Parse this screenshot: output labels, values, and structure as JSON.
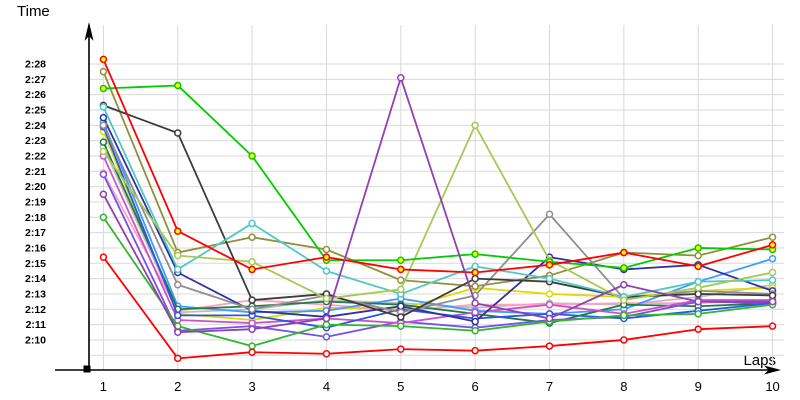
{
  "chart_data": {
    "type": "line",
    "title": "",
    "xlabel": "Laps",
    "ylabel": "Time",
    "x": [
      1,
      2,
      3,
      4,
      5,
      6,
      7,
      8,
      9,
      10
    ],
    "x_tick_labels": [
      "1",
      "2",
      "3",
      "4",
      "5",
      "6",
      "7",
      "8",
      "9",
      "10"
    ],
    "y_tick_labels": [
      "2:28",
      "2:27",
      "2:26",
      "2:25",
      "2:24",
      "2:23",
      "2:22",
      "2:21",
      "2:20",
      "2:19",
      "2:18",
      "2:17",
      "2:16",
      "2:15",
      "2:14",
      "2:13",
      "2:12",
      "2:11",
      "2:10"
    ],
    "y_axis_unit": "min:sec lap time",
    "ylim": [
      "2:09",
      "2:28"
    ],
    "xlim": [
      1,
      10
    ],
    "grid": true,
    "legend": "none",
    "axis_color": "#000000",
    "grid_color": "#D9D9D9",
    "marker_style": "open-circle",
    "series": [
      {
        "name": "silver",
        "color": "#BDBDBD",
        "marker_fill": "#FFFFFF",
        "lap_times_seconds": [
          142.6,
          131.8,
          132.0,
          132.6,
          132.4,
          132.1,
          132.4,
          132.3,
          132.8,
          133.6
        ]
      },
      {
        "name": "yellow",
        "color": "#DCDC00",
        "marker_fill": "#FFFFFF",
        "lap_times_seconds": [
          143.6,
          131.7,
          131.3,
          132.1,
          132.0,
          133.4,
          133.0,
          132.8,
          133.2,
          133.4
        ]
      },
      {
        "name": "pink",
        "color": "#FFA0C0",
        "marker_fill": "#FFFFFF",
        "lap_times_seconds": [
          140.9,
          131.9,
          132.6,
          132.3,
          131.9,
          132.3,
          132.3,
          132.4,
          132.4,
          132.6
        ]
      },
      {
        "name": "light-blue",
        "color": "#3E9BFF",
        "marker_fill": "#FFFFFF",
        "lap_times_seconds": [
          144.2,
          132.2,
          131.8,
          131.9,
          132.7,
          131.9,
          131.7,
          132.0,
          133.8,
          135.3
        ]
      },
      {
        "name": "dark-green",
        "color": "#237A46",
        "marker_fill": "#FFFFFF",
        "lap_times_seconds": [
          142.9,
          132.0,
          132.2,
          132.5,
          132.3,
          131.7,
          131.1,
          132.3,
          132.2,
          132.4
        ]
      },
      {
        "name": "blue-violet",
        "color": "#7A50E8",
        "marker_fill": "#FFFFFF",
        "lap_times_seconds": [
          140.8,
          130.6,
          130.9,
          130.2,
          131.2,
          130.8,
          131.3,
          131.5,
          132.5,
          132.4
        ]
      },
      {
        "name": "magenta",
        "color": "#C855C8",
        "marker_fill": "#FFFFFF",
        "lap_times_seconds": [
          142.0,
          131.3,
          131.1,
          131.4,
          131.1,
          131.8,
          132.3,
          131.7,
          132.6,
          132.6
        ]
      },
      {
        "name": "blue",
        "color": "#2F55E6",
        "marker_fill": "#FFFFFF",
        "lap_times_seconds": [
          143.9,
          131.6,
          131.6,
          130.8,
          132.0,
          131.4,
          131.7,
          131.4,
          131.9,
          132.4
        ]
      },
      {
        "name": "navy",
        "color": "#3030A8",
        "marker_fill": "#FFFFFF",
        "lap_times_seconds": [
          144.5,
          134.4,
          131.9,
          131.5,
          132.2,
          131.2,
          135.4,
          134.6,
          134.9,
          133.2
        ]
      },
      {
        "name": "olive",
        "color": "#8F8F3C",
        "marker_fill": "#FFFFFF",
        "lap_times_seconds": [
          147.5,
          135.7,
          136.7,
          135.9,
          133.9,
          133.5,
          134.2,
          135.7,
          135.5,
          136.7
        ]
      },
      {
        "name": "gray",
        "color": "#8F8F8F",
        "marker_fill": "#FFFFFF",
        "lap_times_seconds": [
          144.0,
          133.6,
          132.0,
          132.9,
          131.8,
          132.9,
          138.2,
          132.7,
          133.2,
          133.0
        ]
      },
      {
        "name": "black",
        "color": "#3C3C3C",
        "marker_fill": "#FFFFFF",
        "lap_times_seconds": [
          145.3,
          143.5,
          132.6,
          133.0,
          131.5,
          134.0,
          133.8,
          132.8,
          133.0,
          132.9
        ]
      },
      {
        "name": "cyan",
        "color": "#4FC8C8",
        "marker_fill": "#FFFFFF",
        "lap_times_seconds": [
          145.2,
          134.6,
          137.6,
          134.5,
          133.0,
          134.8,
          134.0,
          132.8,
          133.8,
          133.9
        ]
      },
      {
        "name": "yellow-green",
        "color": "#A8C855",
        "marker_fill": "#FFFFFF",
        "lap_times_seconds": [
          142.3,
          135.5,
          135.1,
          132.7,
          133.3,
          144.0,
          135.2,
          132.6,
          133.4,
          134.4
        ]
      },
      {
        "name": "mid-green",
        "color": "#2EB82E",
        "marker_fill": "#FFFFFF",
        "lap_times_seconds": [
          138.0,
          130.9,
          129.6,
          131.0,
          130.9,
          130.6,
          131.2,
          131.6,
          131.7,
          132.3
        ]
      },
      {
        "name": "green-highlight",
        "color": "#00CC00",
        "marker_fill": "#FFFF00",
        "lap_times_seconds": [
          146.4,
          146.6,
          142.0,
          135.2,
          135.2,
          135.6,
          135.1,
          134.7,
          136.0,
          135.9
        ]
      },
      {
        "name": "red-highlight",
        "color": "#FF0000",
        "marker_fill": "#FFFF00",
        "lap_times_seconds": [
          148.3,
          137.1,
          134.6,
          135.4,
          134.6,
          134.4,
          134.9,
          135.7,
          134.8,
          136.2
        ]
      },
      {
        "name": "red-fastest",
        "color": "#FF0000",
        "marker_fill": "#FFFFFF",
        "lap_times_seconds": [
          135.4,
          128.8,
          129.2,
          129.1,
          129.4,
          129.3,
          129.6,
          130.0,
          130.7,
          130.9
        ]
      },
      {
        "name": "purple",
        "color": "#9141AC",
        "marker_fill": "#FFFFFF",
        "lap_times_seconds": [
          139.5,
          130.5,
          130.7,
          131.4,
          147.1,
          132.4,
          131.4,
          133.6,
          132.5,
          132.5
        ]
      }
    ]
  }
}
